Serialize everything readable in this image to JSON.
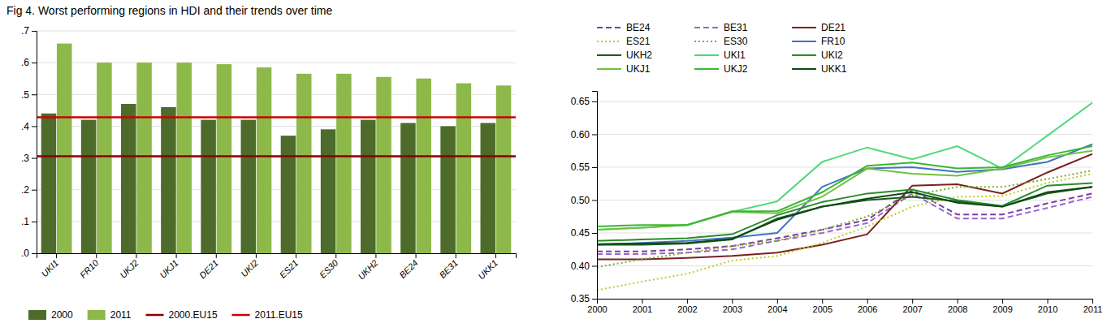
{
  "chart_data": [
    {
      "type": "bar",
      "title": "Fig 4. Worst performing regions in HDI and their trends over time",
      "categories": [
        "UKI1",
        "FR10",
        "UKJ2",
        "UKJ1",
        "DE21",
        "UKI2",
        "ES21",
        "ES30",
        "UKH2",
        "BE24",
        "BE31",
        "UKK1"
      ],
      "series": [
        {
          "name": "2000",
          "color": "#4d6b2a",
          "values": [
            0.44,
            0.42,
            0.47,
            0.46,
            0.42,
            0.42,
            0.37,
            0.39,
            0.42,
            0.41,
            0.4,
            0.41
          ]
        },
        {
          "name": "2011",
          "color": "#8db84a",
          "values": [
            0.66,
            0.6,
            0.6,
            0.6,
            0.595,
            0.585,
            0.565,
            0.565,
            0.555,
            0.55,
            0.535,
            0.528
          ]
        }
      ],
      "reference_lines": [
        {
          "name": "2000.EU15",
          "color": "#8b0000",
          "value": 0.305
        },
        {
          "name": "2011.EU15",
          "color": "#cc0000",
          "value": 0.428
        }
      ],
      "ylim": [
        0,
        0.7
      ],
      "yticks": [
        {
          "value": 0.0,
          "label": ".0"
        },
        {
          "value": 0.1,
          "label": ".1"
        },
        {
          "value": 0.2,
          "label": ".2"
        },
        {
          "value": 0.3,
          "label": ".3"
        },
        {
          "value": 0.4,
          "label": ".4"
        },
        {
          "value": 0.5,
          "label": ".5"
        },
        {
          "value": 0.6,
          "label": ".6"
        },
        {
          "value": 0.7,
          "label": ".7"
        }
      ],
      "grid": true,
      "legend": "bottom"
    },
    {
      "type": "line",
      "x": [
        2000,
        2001,
        2002,
        2003,
        2004,
        2005,
        2006,
        2007,
        2008,
        2009,
        2010,
        2011
      ],
      "xlim": [
        2000,
        2011
      ],
      "xticks": [
        2000,
        2001,
        2002,
        2003,
        2004,
        2005,
        2006,
        2007,
        2008,
        2009,
        2010,
        2011
      ],
      "series": [
        {
          "name": "BE24",
          "color": "#7b3fa0",
          "line_style": "dashed",
          "values": [
            0.422,
            0.422,
            0.425,
            0.43,
            0.442,
            0.455,
            0.47,
            0.515,
            0.478,
            0.478,
            0.495,
            0.51
          ]
        },
        {
          "name": "BE31",
          "color": "#9966cc",
          "line_style": "dashed",
          "values": [
            0.418,
            0.418,
            0.42,
            0.425,
            0.438,
            0.45,
            0.465,
            0.51,
            0.472,
            0.472,
            0.488,
            0.505
          ]
        },
        {
          "name": "DE21",
          "color": "#7b2020",
          "line_style": "solid",
          "values": [
            0.41,
            0.41,
            0.412,
            0.415,
            0.42,
            0.432,
            0.448,
            0.522,
            0.524,
            0.51,
            0.542,
            0.57
          ]
        },
        {
          "name": "ES21",
          "color": "#b8d020",
          "line_style": "dotted",
          "values": [
            0.363,
            0.376,
            0.388,
            0.408,
            0.415,
            0.435,
            0.46,
            0.49,
            0.505,
            0.506,
            0.526,
            0.54
          ]
        },
        {
          "name": "ES30",
          "color": "#7ab020",
          "line_style": "dotted",
          "values": [
            0.398,
            0.41,
            0.42,
            0.43,
            0.438,
            0.455,
            0.475,
            0.507,
            0.52,
            0.52,
            0.532,
            0.545
          ]
        },
        {
          "name": "FR10",
          "color": "#4472c4",
          "line_style": "solid",
          "values": [
            0.432,
            0.435,
            0.438,
            0.443,
            0.45,
            0.52,
            0.548,
            0.55,
            0.543,
            0.547,
            0.558,
            0.585
          ]
        },
        {
          "name": "UKH2",
          "color": "#1a5c1a",
          "line_style": "solid",
          "values": [
            0.432,
            0.432,
            0.434,
            0.44,
            0.472,
            0.49,
            0.5,
            0.505,
            0.498,
            0.49,
            0.51,
            0.52
          ]
        },
        {
          "name": "UKI1",
          "color": "#50d878",
          "line_style": "solid",
          "values": [
            0.455,
            0.458,
            0.462,
            0.482,
            0.498,
            0.558,
            0.58,
            0.562,
            0.582,
            0.548,
            0.598,
            0.648
          ]
        },
        {
          "name": "UKI2",
          "color": "#2a8c2a",
          "line_style": "solid",
          "values": [
            0.438,
            0.44,
            0.442,
            0.448,
            0.477,
            0.497,
            0.51,
            0.516,
            0.5,
            0.491,
            0.522,
            0.526
          ]
        },
        {
          "name": "UKJ1",
          "color": "#70c040",
          "line_style": "solid",
          "values": [
            0.455,
            0.458,
            0.462,
            0.482,
            0.48,
            0.505,
            0.548,
            0.54,
            0.537,
            0.548,
            0.565,
            0.575
          ]
        },
        {
          "name": "UKJ2",
          "color": "#38b832",
          "line_style": "solid",
          "values": [
            0.46,
            0.462,
            0.462,
            0.483,
            0.483,
            0.512,
            0.552,
            0.557,
            0.548,
            0.55,
            0.568,
            0.582
          ]
        },
        {
          "name": "UKK1",
          "color": "#0d4a15",
          "line_style": "solid",
          "values": [
            0.433,
            0.434,
            0.435,
            0.441,
            0.47,
            0.49,
            0.502,
            0.512,
            0.496,
            0.49,
            0.512,
            0.52
          ]
        }
      ],
      "ylim": [
        0.35,
        0.666
      ],
      "yticks": [
        0.35,
        {
          "value": 0.4,
          "label": "0.40"
        },
        0.45,
        {
          "value": 0.5,
          "label": "0.50"
        },
        0.55,
        {
          "value": 0.6,
          "label": "0.60"
        },
        0.65
      ],
      "grid": true,
      "legend": "top"
    }
  ]
}
